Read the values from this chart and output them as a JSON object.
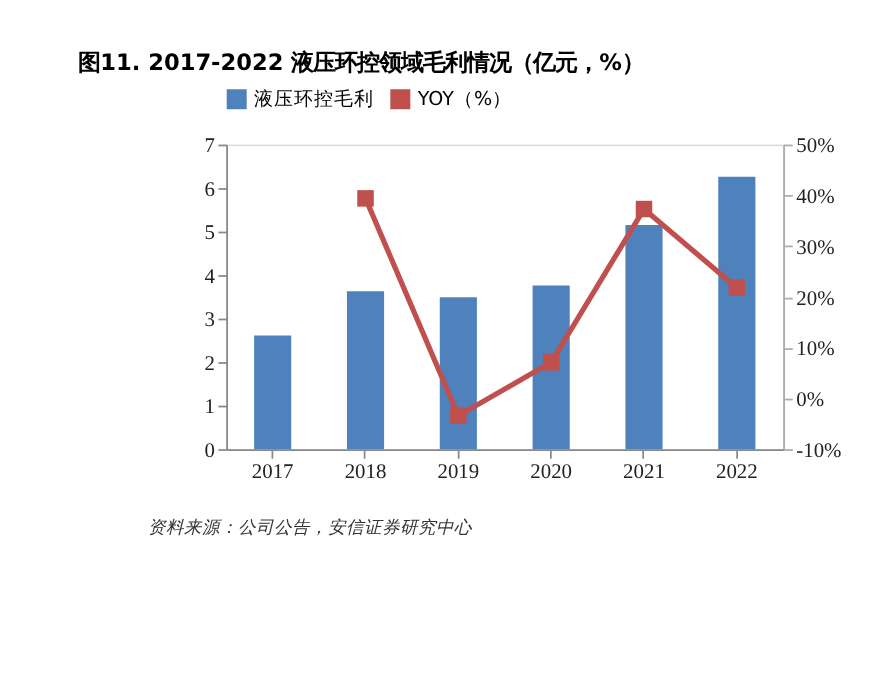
{
  "chart_data": {
    "type": "bar",
    "title": "图11. 2017-2022 液压环控领域毛利情况（亿元，%）",
    "categories": [
      "2017",
      "2018",
      "2019",
      "2020",
      "2021",
      "2022"
    ],
    "series": [
      {
        "name": "液压环控毛利",
        "color": "#4f81bd",
        "values": [
          2.61,
          3.63,
          3.49,
          3.76,
          5.15,
          6.26
        ]
      },
      {
        "name": "YOY（%）",
        "type": "line",
        "axis": "y2",
        "color": "#c0504d",
        "values": [
          null,
          39.4,
          -3.4,
          7.1,
          37.3,
          21.8
        ]
      }
    ],
    "ylim": [
      0,
      7
    ],
    "yticks": [
      0,
      1,
      2,
      3,
      4,
      5,
      6,
      7
    ],
    "y2lim": [
      -10,
      50
    ],
    "y2ticks": [
      {
        "value": -10,
        "label": "-10%"
      },
      {
        "value": 0,
        "label": "0%"
      },
      {
        "value": 10,
        "label": "10%"
      },
      {
        "value": 20,
        "label": "20%"
      },
      {
        "value": 30,
        "label": "30%"
      },
      {
        "value": 40,
        "label": "40%"
      },
      {
        "value": 50,
        "label": "50%"
      }
    ],
    "marker": "square",
    "legend": "top",
    "grid": false,
    "annotations": [
      "资料来源：公司公告，安信证券研究中心"
    ]
  }
}
